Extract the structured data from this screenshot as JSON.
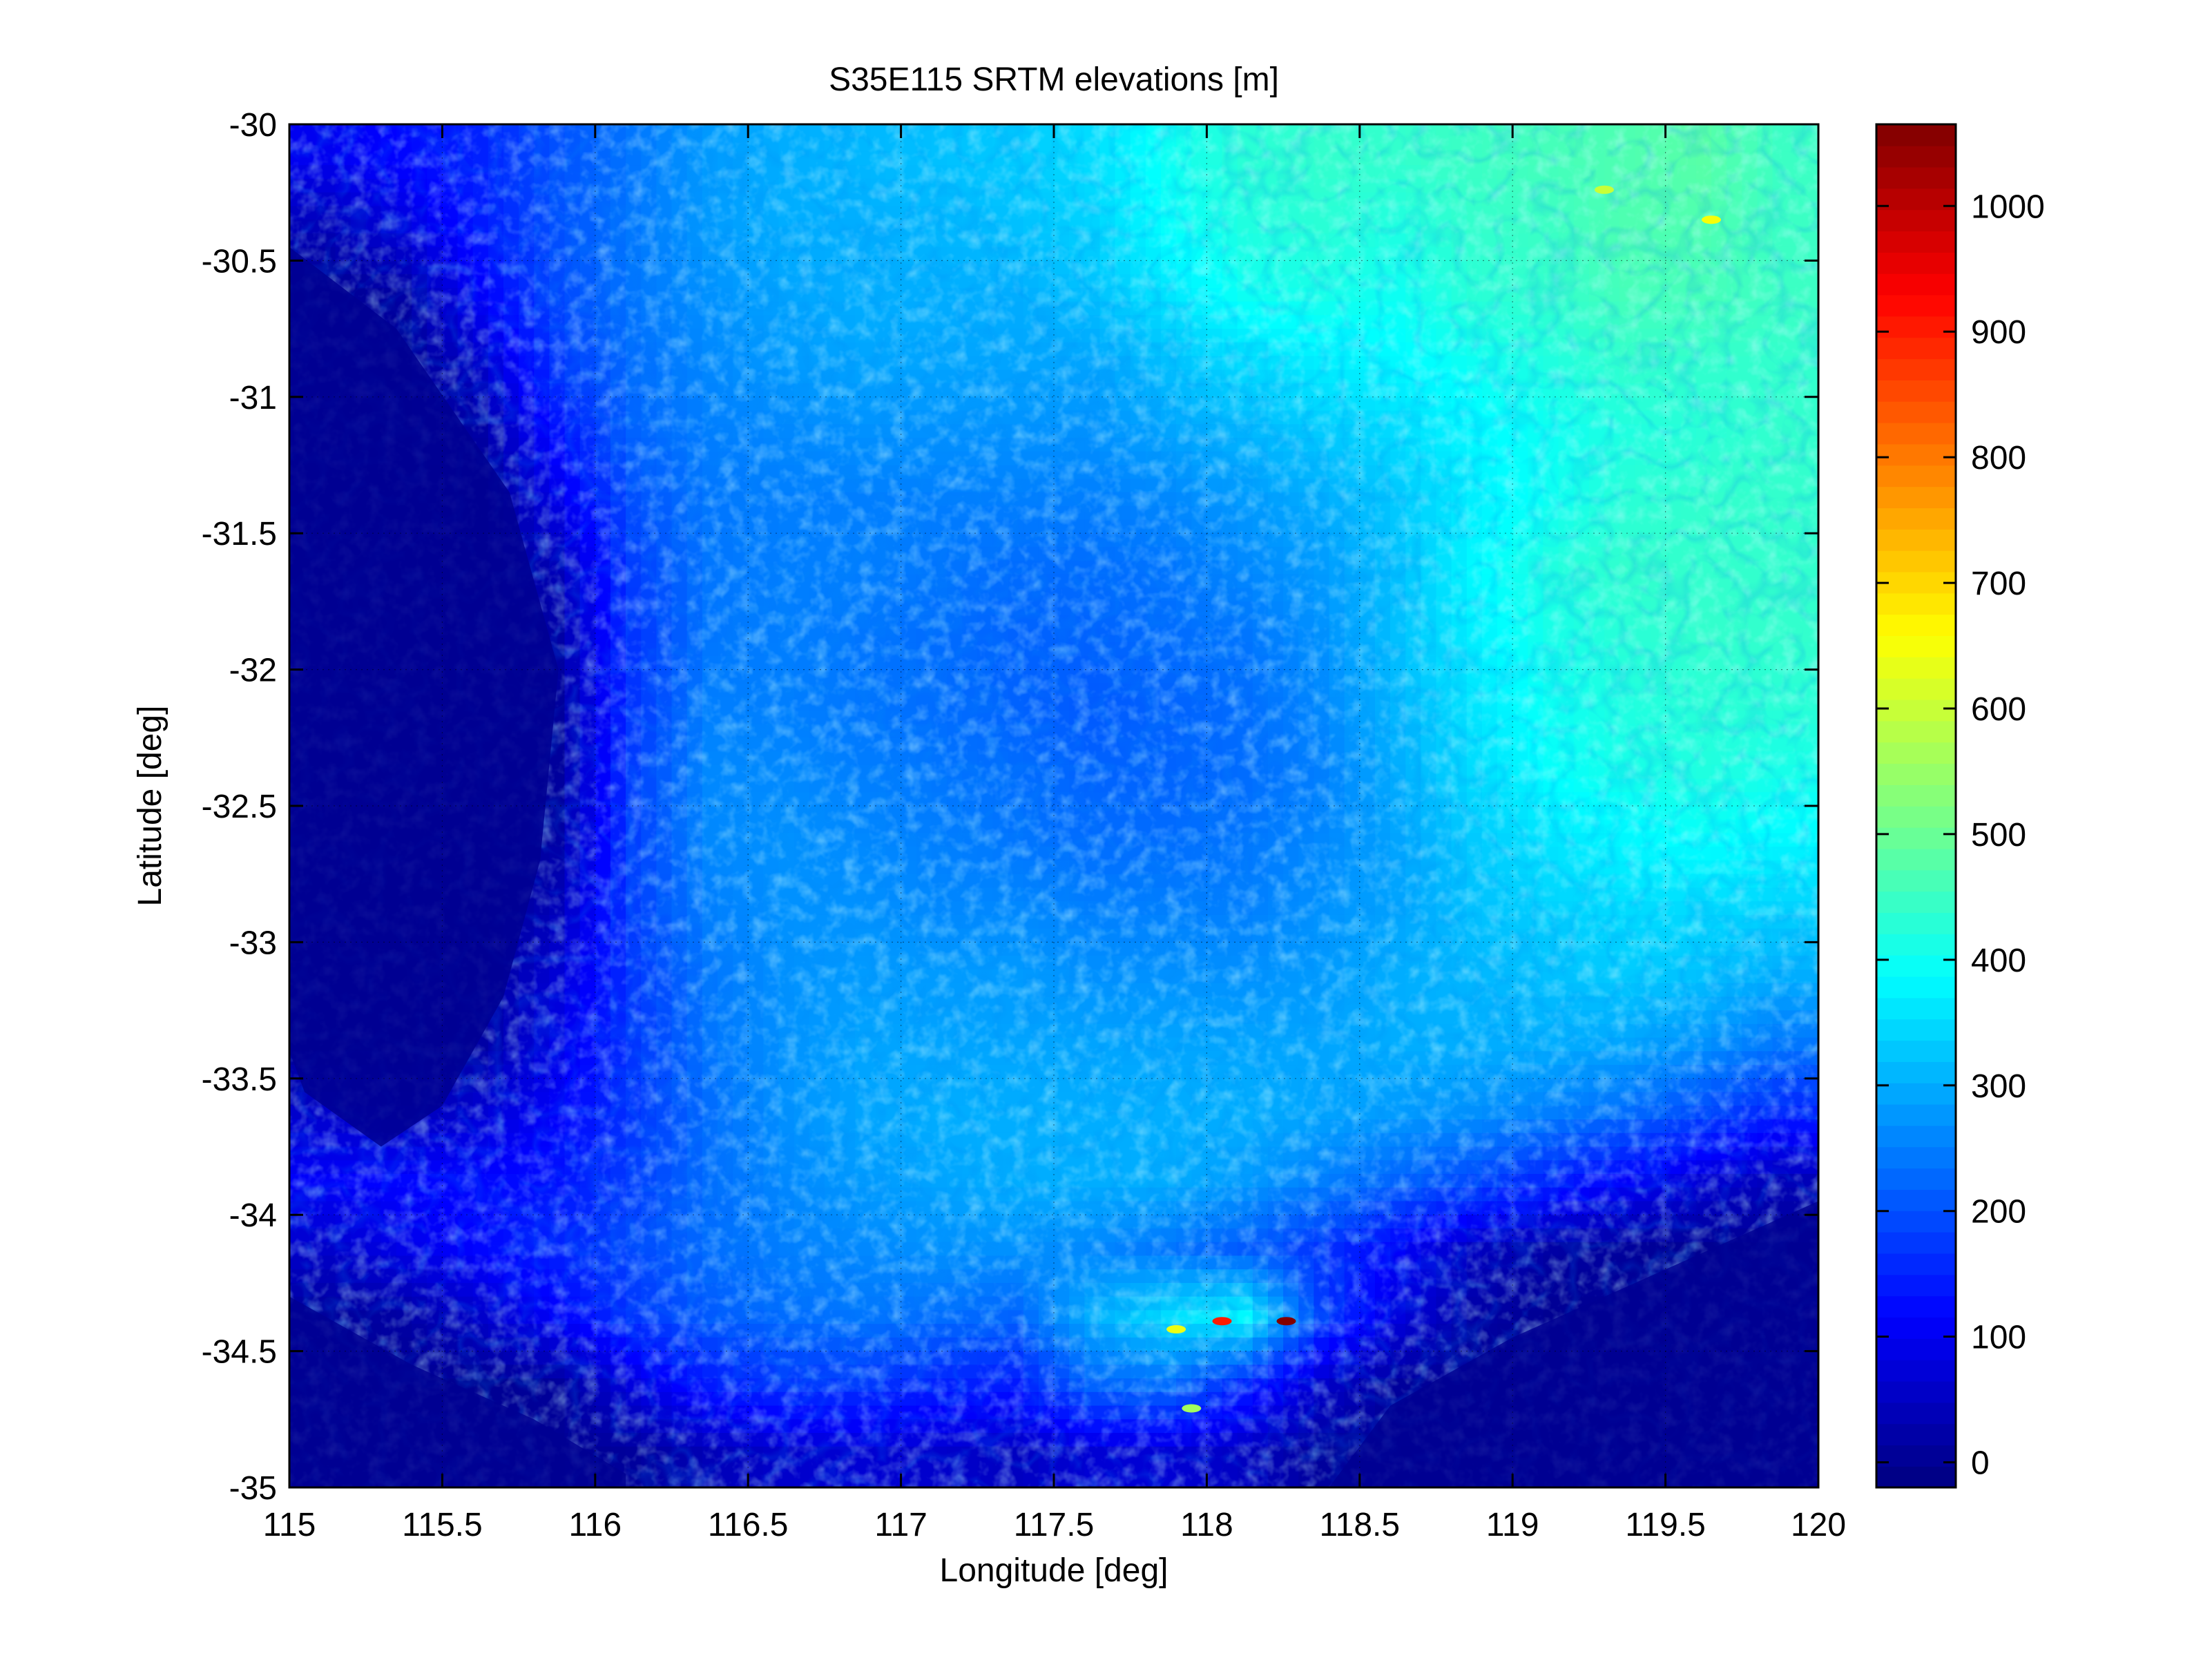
{
  "chart_data": {
    "type": "heatmap",
    "title": "S35E115 SRTM elevations [m]",
    "xlabel": "Longitude [deg]",
    "ylabel": "Latitude [deg]",
    "xlim": [
      115,
      120
    ],
    "ylim": [
      -35,
      -30
    ],
    "x_ticks": [
      115,
      115.5,
      116,
      116.5,
      117,
      117.5,
      118,
      118.5,
      119,
      119.5,
      120
    ],
    "x_tick_labels": [
      "115",
      "115.5",
      "116",
      "116.5",
      "117",
      "117.5",
      "118",
      "118.5",
      "119",
      "119.5",
      "120"
    ],
    "y_ticks": [
      -30,
      -30.5,
      -31,
      -31.5,
      -32,
      -32.5,
      -33,
      -33.5,
      -34,
      -34.5,
      -35
    ],
    "y_tick_labels": [
      "-30",
      "-30.5",
      "-31",
      "-31.5",
      "-32",
      "-32.5",
      "-33",
      "-33.5",
      "-34",
      "-34.5",
      "-35"
    ],
    "grid": true,
    "colorbar": {
      "colormap": "jet",
      "range": [
        -20,
        1065
      ],
      "ticks": [
        0,
        100,
        200,
        300,
        400,
        500,
        600,
        700,
        800,
        900,
        1000
      ],
      "tick_labels": [
        "0",
        "100",
        "200",
        "300",
        "400",
        "500",
        "600",
        "700",
        "800",
        "900",
        "1000"
      ]
    },
    "elevation_grid": {
      "lon": [
        115.125,
        115.375,
        115.625,
        115.875,
        116.125,
        116.375,
        116.625,
        116.875,
        117.125,
        117.375,
        117.625,
        117.875,
        118.125,
        118.375,
        118.625,
        118.875,
        119.125,
        119.375,
        119.625,
        119.875
      ],
      "lat": [
        -30.125,
        -30.375,
        -30.625,
        -30.875,
        -31.125,
        -31.375,
        -31.625,
        -31.875,
        -32.125,
        -32.375,
        -32.625,
        -32.875,
        -33.125,
        -33.375,
        -33.625,
        -33.875,
        -34.125,
        -34.375,
        -34.625,
        -34.875
      ],
      "values_m": [
        [
          100,
          120,
          150,
          200,
          240,
          280,
          300,
          310,
          320,
          330,
          350,
          400,
          430,
          440,
          440,
          450,
          460,
          470,
          480,
          450
        ],
        [
          40,
          80,
          140,
          200,
          240,
          280,
          300,
          300,
          310,
          320,
          340,
          390,
          420,
          430,
          420,
          440,
          450,
          470,
          470,
          450
        ],
        [
          0,
          20,
          110,
          190,
          240,
          270,
          290,
          300,
          300,
          300,
          320,
          360,
          400,
          410,
          400,
          430,
          440,
          460,
          460,
          450
        ],
        [
          0,
          0,
          60,
          170,
          230,
          260,
          280,
          290,
          290,
          290,
          290,
          320,
          350,
          370,
          380,
          400,
          420,
          440,
          440,
          440
        ],
        [
          0,
          0,
          20,
          130,
          220,
          250,
          260,
          270,
          270,
          270,
          270,
          290,
          310,
          330,
          350,
          380,
          400,
          420,
          430,
          440
        ],
        [
          0,
          0,
          0,
          90,
          200,
          240,
          250,
          250,
          250,
          250,
          250,
          260,
          280,
          300,
          330,
          370,
          400,
          430,
          440,
          440
        ],
        [
          0,
          0,
          0,
          40,
          180,
          240,
          250,
          250,
          240,
          230,
          230,
          240,
          260,
          280,
          320,
          380,
          420,
          440,
          440,
          440
        ],
        [
          0,
          0,
          0,
          20,
          170,
          240,
          250,
          240,
          230,
          220,
          220,
          230,
          240,
          270,
          320,
          370,
          410,
          430,
          440,
          440
        ],
        [
          0,
          0,
          0,
          10,
          170,
          250,
          250,
          240,
          230,
          220,
          210,
          220,
          230,
          260,
          310,
          360,
          400,
          420,
          430,
          430
        ],
        [
          0,
          0,
          0,
          10,
          180,
          260,
          260,
          250,
          240,
          230,
          220,
          220,
          230,
          250,
          300,
          350,
          390,
          410,
          420,
          410
        ],
        [
          0,
          0,
          0,
          20,
          180,
          260,
          270,
          260,
          250,
          240,
          230,
          230,
          240,
          260,
          290,
          330,
          360,
          380,
          390,
          380
        ],
        [
          0,
          0,
          0,
          40,
          180,
          250,
          270,
          270,
          260,
          260,
          250,
          250,
          250,
          270,
          290,
          320,
          340,
          350,
          350,
          340
        ],
        [
          0,
          0,
          10,
          70,
          170,
          240,
          270,
          280,
          280,
          280,
          270,
          270,
          270,
          280,
          300,
          310,
          320,
          330,
          320,
          300
        ],
        [
          0,
          0,
          20,
          90,
          170,
          240,
          270,
          290,
          290,
          290,
          290,
          290,
          290,
          290,
          300,
          300,
          300,
          290,
          270,
          240
        ],
        [
          60,
          40,
          70,
          110,
          170,
          230,
          270,
          290,
          300,
          300,
          300,
          300,
          300,
          290,
          280,
          270,
          250,
          230,
          190,
          150
        ],
        [
          110,
          120,
          120,
          130,
          180,
          230,
          260,
          280,
          290,
          300,
          300,
          300,
          280,
          250,
          220,
          190,
          150,
          110,
          70,
          40
        ],
        [
          60,
          90,
          120,
          150,
          190,
          230,
          250,
          260,
          270,
          270,
          260,
          240,
          210,
          170,
          110,
          50,
          20,
          10,
          0,
          0
        ],
        [
          10,
          20,
          60,
          110,
          170,
          210,
          230,
          240,
          230,
          220,
          300,
          350,
          380,
          180,
          80,
          20,
          0,
          0,
          0,
          0
        ],
        [
          0,
          0,
          0,
          10,
          80,
          140,
          170,
          170,
          150,
          140,
          220,
          230,
          150,
          60,
          10,
          0,
          0,
          0,
          0,
          0
        ],
        [
          0,
          0,
          0,
          0,
          10,
          40,
          60,
          70,
          60,
          50,
          70,
          70,
          50,
          10,
          0,
          0,
          0,
          0,
          0,
          0
        ]
      ],
      "peaks": [
        {
          "lon": 118.26,
          "lat": -34.39,
          "value_m": 1060
        },
        {
          "lon": 118.05,
          "lat": -34.39,
          "value_m": 900
        },
        {
          "lon": 117.9,
          "lat": -34.42,
          "value_m": 640
        },
        {
          "lon": 119.65,
          "lat": -30.35,
          "value_m": 650
        },
        {
          "lon": 119.3,
          "lat": -30.24,
          "value_m": 600
        },
        {
          "lon": 117.95,
          "lat": -34.71,
          "value_m": 560
        }
      ]
    }
  }
}
